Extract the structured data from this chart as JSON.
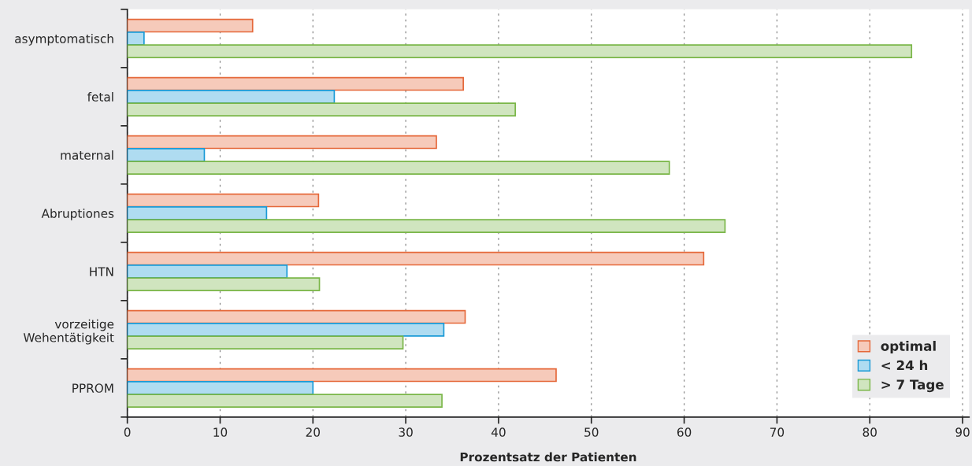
{
  "chart_data": {
    "type": "bar",
    "orientation": "horizontal",
    "xlabel": "Prozentsatz der Patienten",
    "categories": [
      "asymptomatisch",
      "fetal",
      "maternal",
      "Abruptiones",
      "HTN",
      "vorzeitige\nWehentätigkeit",
      "PPROM"
    ],
    "series": [
      {
        "name": "optimal",
        "color": "#e5683a",
        "values": [
          13.5,
          36.2,
          33.3,
          20.6,
          62.1,
          36.4,
          46.2
        ]
      },
      {
        "name": "< 24 h",
        "color": "#1a9ad6",
        "values": [
          1.8,
          22.3,
          8.3,
          15.0,
          17.2,
          34.1,
          20.0
        ]
      },
      {
        "name": "> 7 Tage",
        "color": "#7ab648",
        "values": [
          84.5,
          41.8,
          58.4,
          64.4,
          20.7,
          29.7,
          33.9
        ]
      }
    ],
    "xlim": [
      0,
      90.7
    ],
    "xticks": [
      0,
      10,
      20,
      30,
      40,
      50,
      60,
      70,
      80,
      90
    ],
    "grid": "x",
    "legend": "bottom right"
  }
}
